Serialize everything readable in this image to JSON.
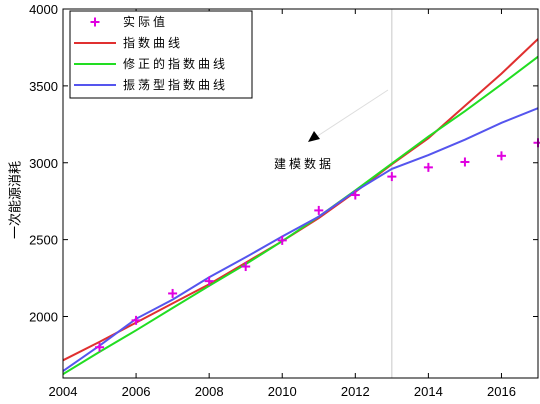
{
  "chart_data": {
    "type": "line",
    "xlabel": "",
    "ylabel": "一次能源消耗",
    "xlim": [
      2004,
      2017
    ],
    "ylim": [
      1600,
      4000
    ],
    "xticks": [
      2004,
      2006,
      2008,
      2010,
      2012,
      2014,
      2016
    ],
    "yticks": [
      2000,
      2500,
      3000,
      3500,
      4000
    ],
    "xtick_labels": [
      "2004",
      "2006",
      "2008",
      "2010",
      "2012",
      "2014",
      "2016"
    ],
    "ytick_labels": [
      "2000",
      "2500",
      "3000",
      "3500",
      "4000"
    ],
    "grid": false,
    "legend_position": "top-left",
    "vline": {
      "x": 2013,
      "color": "#c8c8c8"
    },
    "annotation": {
      "text": "建模数据",
      "arrow_from": [
        2016.1,
        3480
      ],
      "arrow_to": [
        2014.4,
        3135
      ]
    },
    "series": [
      {
        "name": "实际值",
        "type": "scatter",
        "marker": "+",
        "color": "#e000e0",
        "x": [
          2005,
          2006,
          2007,
          2008,
          2009,
          2010,
          2011,
          2012,
          2013,
          2014,
          2015,
          2016,
          2017
        ],
        "y": [
          1800,
          1975,
          2150,
          2230,
          2325,
          2495,
          2690,
          2790,
          2910,
          2970,
          3005,
          3045,
          3130
        ]
      },
      {
        "name": "指数曲线",
        "type": "line",
        "color": "#e03030",
        "x": [
          2004,
          2005,
          2006,
          2007,
          2008,
          2009,
          2010,
          2011,
          2012,
          2013,
          2014,
          2015,
          2016,
          2017
        ],
        "y": [
          1715,
          1835,
          1960,
          2085,
          2210,
          2350,
          2490,
          2640,
          2810,
          2990,
          3160,
          3370,
          3580,
          3805
        ]
      },
      {
        "name": "修正的指数曲线",
        "type": "line",
        "color": "#22dd22",
        "x": [
          2004,
          2005,
          2006,
          2007,
          2008,
          2009,
          2010,
          2011,
          2012,
          2013,
          2014,
          2015,
          2016,
          2017
        ],
        "y": [
          1625,
          1770,
          1910,
          2055,
          2200,
          2340,
          2490,
          2650,
          2820,
          2995,
          3170,
          3335,
          3510,
          3690
        ]
      },
      {
        "name": "振荡型指数曲线",
        "type": "line",
        "color": "#5555ee",
        "x": [
          2004,
          2005,
          2006,
          2007,
          2008,
          2009,
          2010,
          2011,
          2012,
          2013,
          2014,
          2015,
          2016,
          2017
        ],
        "y": [
          1645,
          1810,
          1985,
          2110,
          2255,
          2385,
          2520,
          2650,
          2815,
          2960,
          3050,
          3150,
          3260,
          3355
        ]
      }
    ]
  }
}
